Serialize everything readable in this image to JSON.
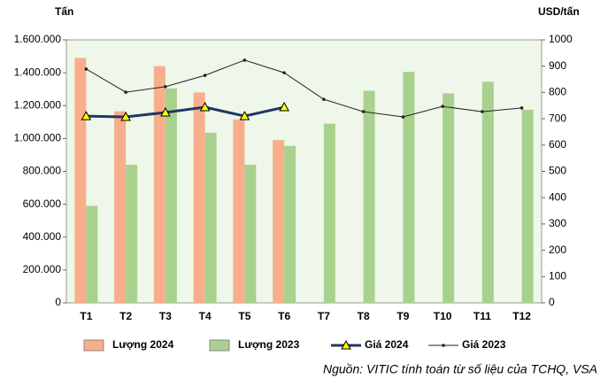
{
  "chart_data": {
    "type": "bar",
    "y_label": "Tấn",
    "y2_label": "USD/tấn",
    "source": "Nguồn: VITIC tính toán từ số liệu của TCHQ, VSA",
    "categories": [
      "T1",
      "T2",
      "T3",
      "T4",
      "T5",
      "T6",
      "T7",
      "T8",
      "T9",
      "T10",
      "T11",
      "T12"
    ],
    "series": [
      {
        "name": "Lượng 2024",
        "type": "bar",
        "color": "#f8ae8a",
        "values": [
          1490000,
          1165000,
          1440000,
          1280000,
          1115000,
          990000,
          null,
          null,
          null,
          null,
          null,
          null
        ]
      },
      {
        "name": "Lượng 2023",
        "type": "bar",
        "color": "#a9d18e",
        "values": [
          590000,
          840000,
          1305000,
          1035000,
          840000,
          955000,
          1090000,
          1290000,
          1405000,
          1275000,
          1345000,
          1175000
        ]
      },
      {
        "name": "Giá 2024",
        "type": "line",
        "axis": "y2",
        "color": "#1f3864",
        "values": [
          710,
          707,
          724,
          744,
          710,
          744,
          null,
          null,
          null,
          null,
          null,
          null
        ]
      },
      {
        "name": "Giá 2023",
        "type": "line",
        "axis": "y2",
        "color": "#222222",
        "values": [
          889,
          801,
          822,
          865,
          923,
          875,
          774,
          727,
          707,
          747,
          727,
          741
        ]
      }
    ],
    "ylim": [
      0,
      1600000
    ],
    "yticks": [
      0,
      {
        "value": 200000,
        "label": "200.000"
      },
      {
        "value": 400000,
        "label": "400.000"
      },
      {
        "value": 600000,
        "label": "600.000"
      },
      {
        "value": 800000,
        "label": "800.000"
      },
      {
        "value": 1000000,
        "label": "1.000.000"
      },
      {
        "value": 1200000,
        "label": "1.200.000"
      },
      {
        "value": 1400000,
        "label": "1.400.000"
      },
      {
        "value": 1600000,
        "label": "1.600.000"
      }
    ],
    "y2lim": [
      0,
      1000
    ],
    "y2ticks": [
      0,
      100,
      200,
      300,
      400,
      500,
      600,
      700,
      800,
      900,
      1000
    ]
  }
}
